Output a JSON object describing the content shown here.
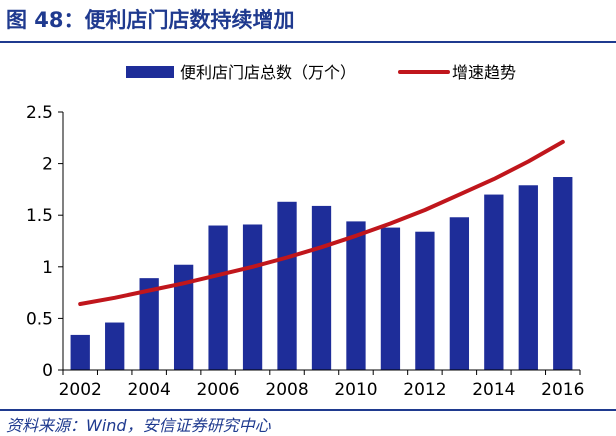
{
  "header": {
    "title": "图 48：便利店门店数持续增加"
  },
  "footer": {
    "source": "资料来源：Wind，安信证券研究中心"
  },
  "colors": {
    "bar": "#1e2d99",
    "line": "#c0161c",
    "title": "#1f3a8f",
    "axis": "#000000"
  },
  "chart_data": {
    "type": "bar",
    "x": [
      2002,
      2003,
      2004,
      2005,
      2006,
      2007,
      2008,
      2009,
      2010,
      2011,
      2012,
      2013,
      2014,
      2015,
      2016
    ],
    "x_tick_labels": [
      "2002",
      "2004",
      "2006",
      "2008",
      "2010",
      "2012",
      "2014",
      "2016"
    ],
    "y_tick_labels": [
      "0",
      "0.5",
      "1",
      "1.5",
      "2",
      "2.5"
    ],
    "ylim": [
      0,
      2.5
    ],
    "series": [
      {
        "name": "便利店门店总数（万个）",
        "kind": "bar",
        "values": [
          0.34,
          0.46,
          0.89,
          1.02,
          1.4,
          1.41,
          1.63,
          1.59,
          1.44,
          1.38,
          1.34,
          1.48,
          1.7,
          1.79,
          1.87
        ]
      },
      {
        "name": "增速趋势",
        "kind": "line",
        "values": [
          0.64,
          0.7,
          0.77,
          0.84,
          0.92,
          1.0,
          1.09,
          1.19,
          1.3,
          1.42,
          1.55,
          1.7,
          1.85,
          2.02,
          2.21
        ]
      }
    ],
    "legend_position": "top",
    "grid": false
  }
}
